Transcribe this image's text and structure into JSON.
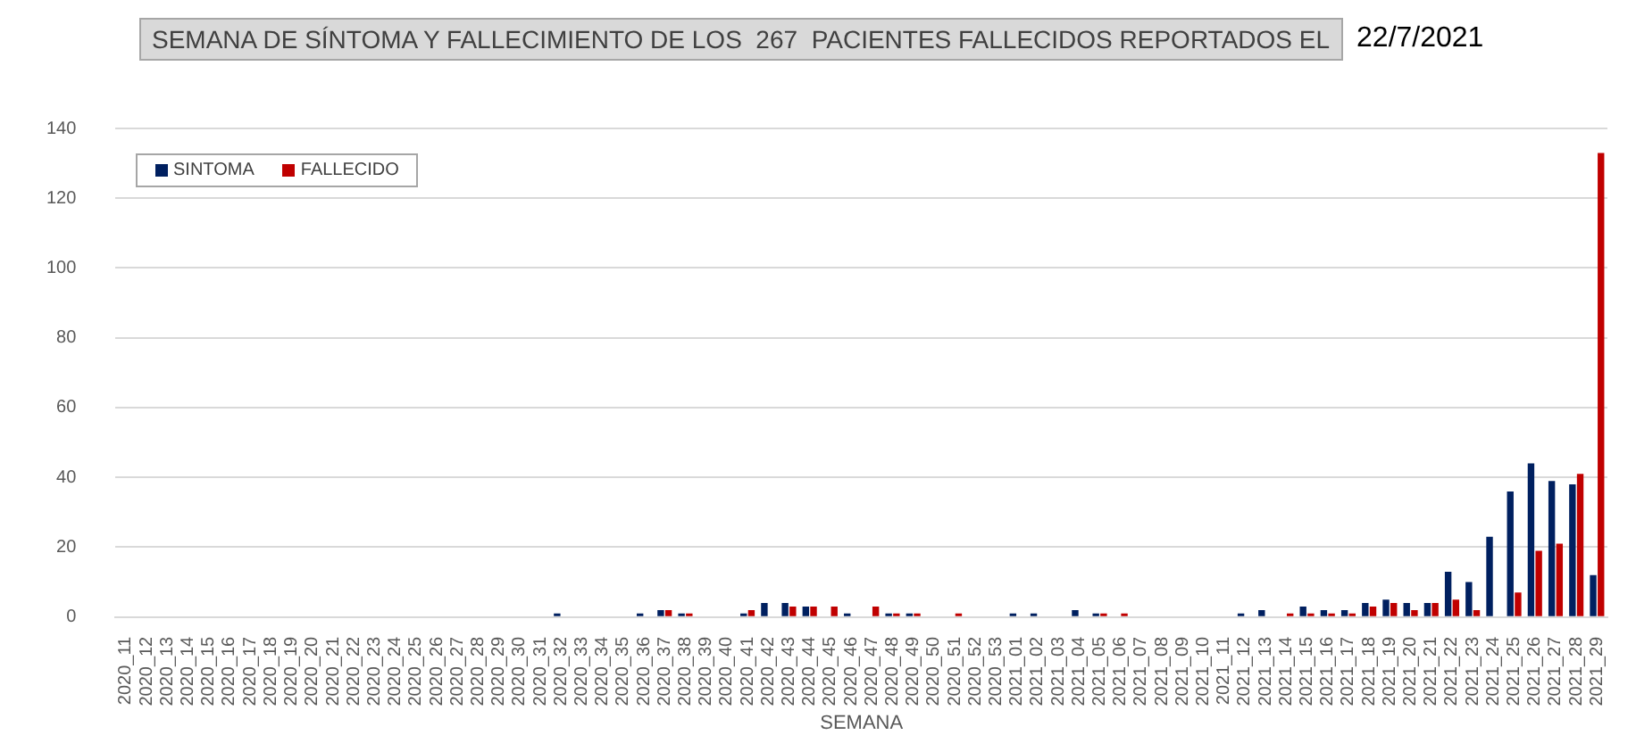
{
  "chart_data": {
    "type": "bar",
    "title": "SEMANA DE SÍNTOMA Y FALLECIMIENTO DE LOS  267  PACIENTES FALLECIDOS REPORTADOS EL",
    "subtitle": "22/7/2021",
    "xlabel": "SEMANA",
    "categories": [
      "2020_11",
      "2020_12",
      "2020_13",
      "2020_14",
      "2020_15",
      "2020_16",
      "2020_17",
      "2020_18",
      "2020_19",
      "2020_20",
      "2020_21",
      "2020_22",
      "2020_23",
      "2020_24",
      "2020_25",
      "2020_26",
      "2020_27",
      "2020_28",
      "2020_29",
      "2020_30",
      "2020_31",
      "2020_32",
      "2020_33",
      "2020_34",
      "2020_35",
      "2020_36",
      "2020_37",
      "2020_38",
      "2020_39",
      "2020_40",
      "2020_41",
      "2020_42",
      "2020_43",
      "2020_44",
      "2020_45",
      "2020_46",
      "2020_47",
      "2020_48",
      "2020_49",
      "2020_50",
      "2020_51",
      "2020_52",
      "2020_53",
      "2021_01",
      "2021_02",
      "2021_03",
      "2021_04",
      "2021_05",
      "2021_06",
      "2021_07",
      "2021_08",
      "2021_09",
      "2021_10",
      "2021_11",
      "2021_12",
      "2021_13",
      "2021_14",
      "2021_15",
      "2021_16",
      "2021_17",
      "2021_18",
      "2021_19",
      "2021_20",
      "2021_21",
      "2021_22",
      "2021_23",
      "2021_24",
      "2021_25",
      "2021_26",
      "2021_27",
      "2021_28",
      "2021_29"
    ],
    "series": [
      {
        "name": "SINTOMA",
        "color": "#002060",
        "values": [
          0,
          0,
          0,
          0,
          0,
          0,
          0,
          0,
          0,
          0,
          0,
          0,
          0,
          0,
          0,
          0,
          0,
          0,
          0,
          0,
          0,
          1,
          0,
          0,
          0,
          1,
          2,
          1,
          0,
          0,
          1,
          4,
          4,
          3,
          0,
          1,
          0,
          1,
          1,
          0,
          0,
          0,
          0,
          1,
          1,
          0,
          2,
          1,
          0,
          0,
          0,
          0,
          0,
          0,
          1,
          2,
          0,
          3,
          2,
          2,
          4,
          5,
          4,
          4,
          13,
          10,
          23,
          36,
          44,
          39,
          38,
          12
        ]
      },
      {
        "name": "FALLECIDO",
        "color": "#c00000",
        "values": [
          0,
          0,
          0,
          0,
          0,
          0,
          0,
          0,
          0,
          0,
          0,
          0,
          0,
          0,
          0,
          0,
          0,
          0,
          0,
          0,
          0,
          0,
          0,
          0,
          0,
          0,
          2,
          1,
          0,
          0,
          2,
          0,
          3,
          3,
          3,
          0,
          3,
          1,
          1,
          0,
          1,
          0,
          0,
          0,
          0,
          0,
          0,
          1,
          1,
          0,
          0,
          0,
          0,
          0,
          0,
          0,
          1,
          1,
          1,
          1,
          3,
          4,
          2,
          4,
          5,
          2,
          0,
          7,
          19,
          21,
          41,
          133
        ]
      }
    ],
    "ylim": [
      0,
      140
    ],
    "yticks": [
      0,
      20,
      40,
      60,
      80,
      100,
      120,
      140
    ],
    "grid": "y",
    "legend": "top left"
  }
}
